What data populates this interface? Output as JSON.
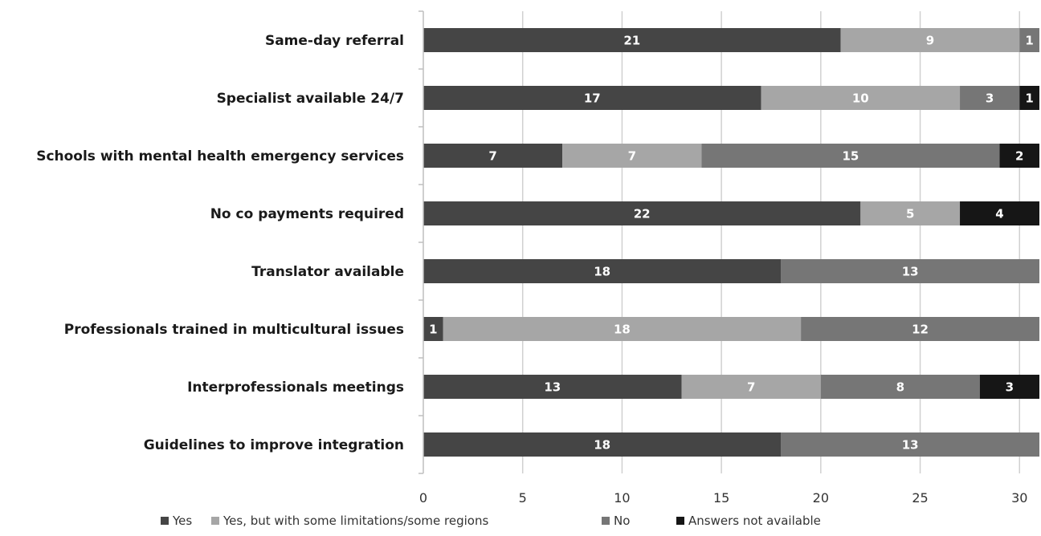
{
  "chart_data": {
    "type": "bar",
    "orientation": "horizontal",
    "stacked": true,
    "categories": [
      "Same-day referral",
      "Specialist available 24/7",
      "Schools with mental health emergency services",
      "No co payments required",
      "Translator available",
      "Professionals trained in multicultural issues",
      "Interprofessionals meetings",
      "Guidelines to improve integration"
    ],
    "series": [
      {
        "name": "Yes",
        "color": "#454545",
        "values": [
          21,
          17,
          7,
          22,
          18,
          1,
          13,
          18
        ]
      },
      {
        "name": "Yes, but with some limitations/some regions",
        "color": "#a6a6a6",
        "values": [
          9,
          10,
          7,
          5,
          0,
          18,
          7,
          0
        ]
      },
      {
        "name": "No",
        "color": "#767676",
        "values": [
          1,
          3,
          15,
          0,
          13,
          12,
          8,
          13
        ]
      },
      {
        "name": "Answers not available",
        "color": "#161616",
        "values": [
          0,
          1,
          2,
          4,
          0,
          0,
          3,
          0
        ]
      }
    ],
    "xlim": [
      0,
      31
    ],
    "xticks": [
      0,
      5,
      10,
      15,
      20,
      25,
      30
    ],
    "grid": "vertical",
    "legend_position": "bottom",
    "title": "",
    "xlabel": "",
    "ylabel": ""
  }
}
